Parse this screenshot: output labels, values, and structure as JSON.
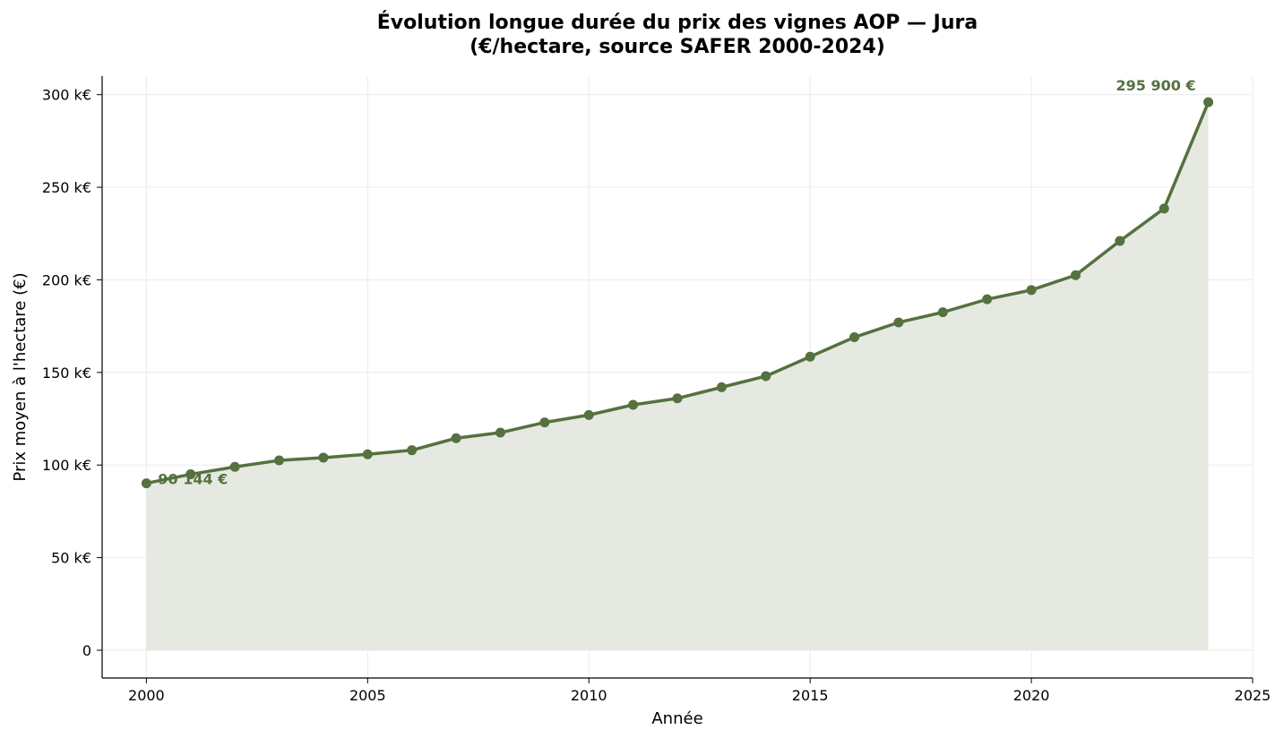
{
  "chart_data": {
    "type": "line",
    "title": [
      "Évolution longue durée du prix des vignes AOP — Jura",
      "(€/hectare, source SAFER 2000-2024)"
    ],
    "xlabel": "Année",
    "ylabel": "Prix moyen à l'hectare (€)",
    "xlim": [
      1999,
      2025
    ],
    "ylim": [
      -15000,
      310000
    ],
    "x_ticks": [
      2000,
      2005,
      2010,
      2015,
      2020,
      2025
    ],
    "y_ticks": [
      0,
      50000,
      100000,
      150000,
      200000,
      250000,
      300000
    ],
    "y_tick_labels": [
      "0",
      "50 k€",
      "100 k€",
      "150 k€",
      "200 k€",
      "250 k€",
      "300 k€"
    ],
    "grid": true,
    "area_fill": true,
    "line_color": "#55713f",
    "fill_color": "#e6e9e1",
    "x": [
      2000,
      2001,
      2002,
      2003,
      2004,
      2005,
      2006,
      2007,
      2008,
      2009,
      2010,
      2011,
      2012,
      2013,
      2014,
      2015,
      2016,
      2017,
      2018,
      2019,
      2020,
      2021,
      2022,
      2023,
      2024
    ],
    "series": [
      {
        "values": [
          90144,
          95000,
          99000,
          102500,
          104000,
          105800,
          108000,
          114500,
          117500,
          123000,
          127000,
          132500,
          136000,
          142000,
          148000,
          158500,
          169000,
          177000,
          182500,
          189500,
          194500,
          202500,
          221000,
          238500,
          295900
        ]
      }
    ],
    "annotations": [
      {
        "text": "90 144 €",
        "x": 2000,
        "y": 90144
      },
      {
        "text": "295 900 €",
        "x": 2024,
        "y": 295900
      }
    ]
  }
}
